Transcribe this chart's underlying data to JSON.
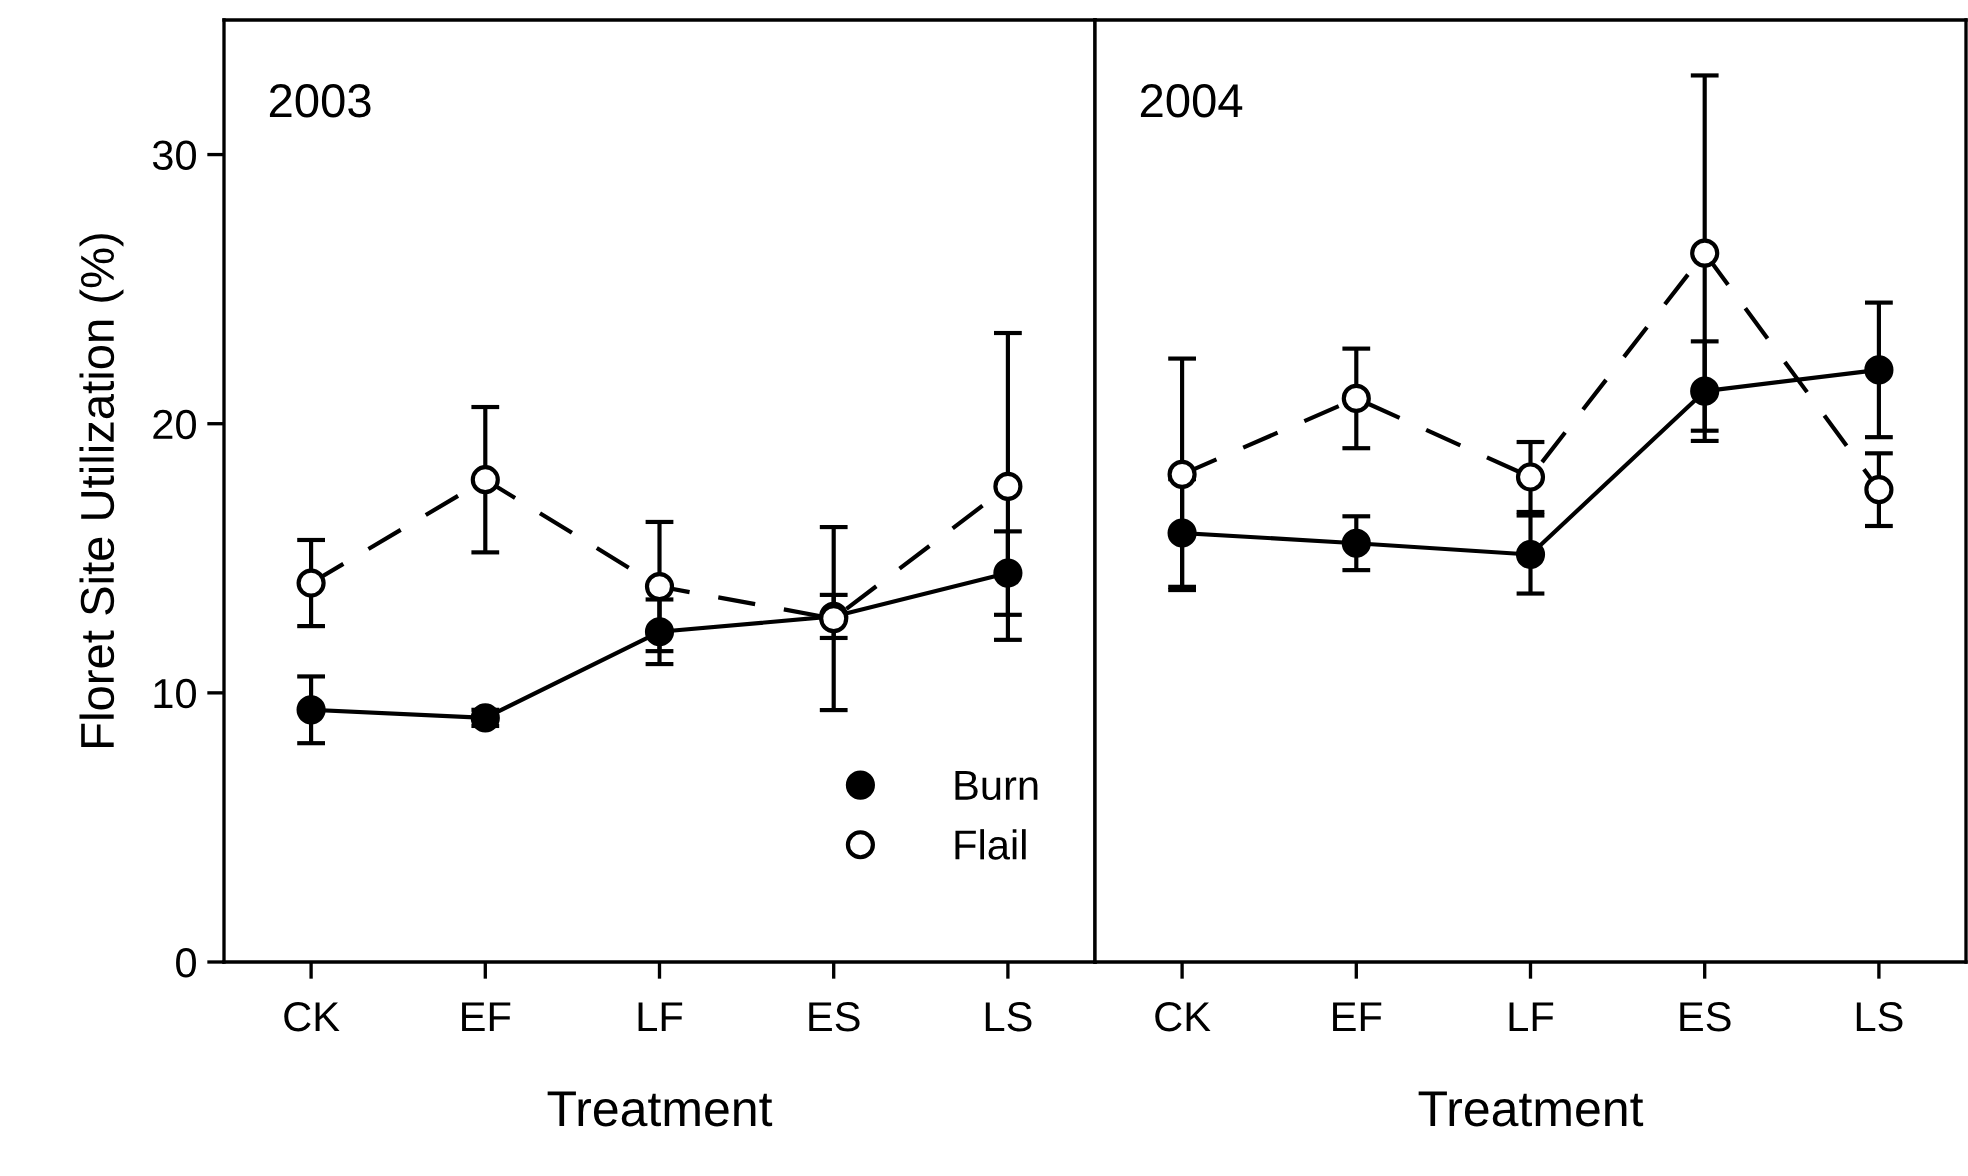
{
  "chart_data": [
    {
      "type": "line",
      "title": "2003",
      "xlabel": "Treatment",
      "ylabel": "Floret Site Utilization (%)",
      "categories": [
        "CK",
        "EF",
        "LF",
        "ES",
        "LS"
      ],
      "ylim": [
        0,
        35
      ],
      "yticks": [
        0,
        10,
        20,
        30
      ],
      "grid": false,
      "legend": "bottom right",
      "marker": "circle",
      "series": [
        {
          "name": "Burn",
          "color": "#000000",
          "line_style": "solid",
          "values": [
            9.37,
            9.07,
            12.27,
            12.84,
            14.45
          ],
          "errors": [
            1.24,
            0.3,
            1.2,
            0.8,
            1.55
          ]
        },
        {
          "name": "Flail",
          "color": "#ffffff",
          "line_style": "dashed",
          "values": [
            14.08,
            17.92,
            13.95,
            12.76,
            17.67
          ],
          "errors": [
            1.6,
            2.7,
            2.4,
            3.4,
            5.7
          ]
        }
      ]
    },
    {
      "type": "line",
      "title": "2004",
      "xlabel": "Treatment",
      "categories": [
        "CK",
        "EF",
        "LF",
        "ES",
        "LS"
      ],
      "ylim": [
        0,
        35
      ],
      "yticks": [
        0,
        10,
        20,
        30
      ],
      "tick_labels": "x",
      "grid": false,
      "marker": "circle",
      "series": [
        {
          "color": "#000000",
          "line_style": "solid",
          "values": [
            15.94,
            15.56,
            15.14,
            21.21,
            22.0
          ],
          "errors": [
            2.0,
            1.0,
            1.45,
            1.85,
            2.5
          ]
        },
        {
          "color": "#ffffff",
          "line_style": "dashed",
          "values": [
            18.12,
            20.94,
            18.02,
            26.34,
            17.55
          ],
          "errors": [
            4.3,
            1.85,
            1.3,
            6.6,
            1.35
          ]
        }
      ]
    }
  ]
}
